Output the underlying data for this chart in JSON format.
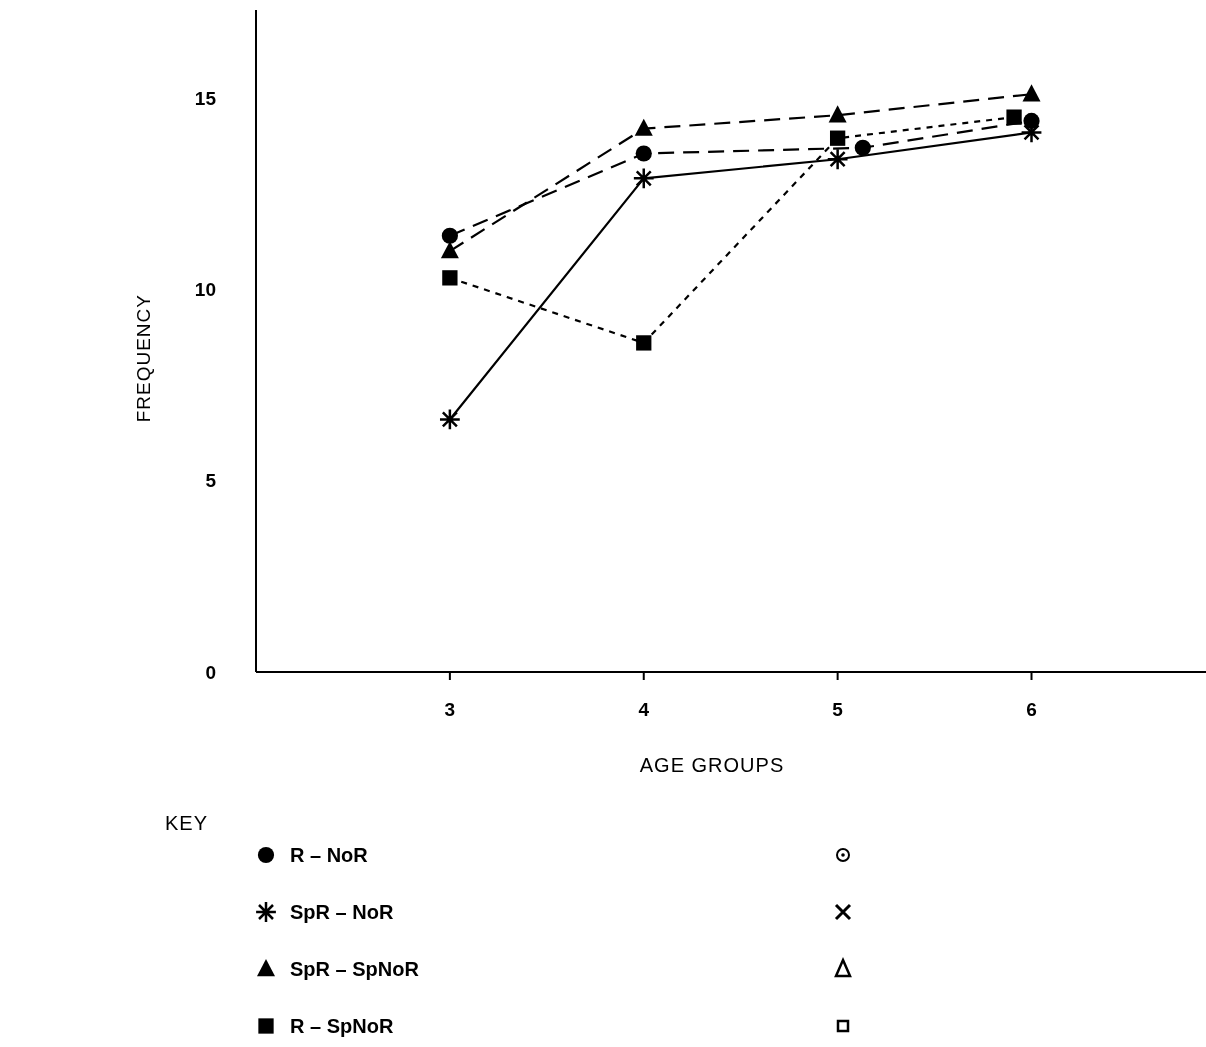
{
  "chart_data": {
    "type": "line",
    "xlabel": "AGE GROUPS",
    "ylabel": "FREQUENCY",
    "legend_title": "KEY",
    "legend": "bottom",
    "xlim": [
      2,
      6.9
    ],
    "ylim": [
      0,
      17.3
    ],
    "xticks": [
      3,
      4,
      5,
      6
    ],
    "yticks": [
      0,
      5,
      10,
      15
    ],
    "grid": false,
    "series": [
      {
        "name": "R – NoR",
        "color": "#000000",
        "marker": "circle",
        "line_style": "dashed",
        "x": [
          3,
          4,
          5.13,
          6
        ],
        "values": [
          11.4,
          13.55,
          13.7,
          14.4
        ]
      },
      {
        "name": "SpR – NoR",
        "color": "#000000",
        "marker": "cross",
        "line_style": "solid",
        "x": [
          3,
          4,
          5,
          6
        ],
        "values": [
          6.6,
          12.9,
          13.4,
          14.1
        ]
      },
      {
        "name": "SpR – SpNoR",
        "color": "#000000",
        "marker": "triangle",
        "line_style": "dashed",
        "x": [
          3,
          4,
          5,
          6
        ],
        "values": [
          11.0,
          14.2,
          14.55,
          15.1
        ]
      },
      {
        "name": "R – SpNoR",
        "color": "#000000",
        "marker": "square",
        "line_style": "dotted",
        "x": [
          3,
          4,
          5,
          5.91
        ],
        "values": [
          10.3,
          8.6,
          13.95,
          14.5
        ]
      }
    ]
  }
}
